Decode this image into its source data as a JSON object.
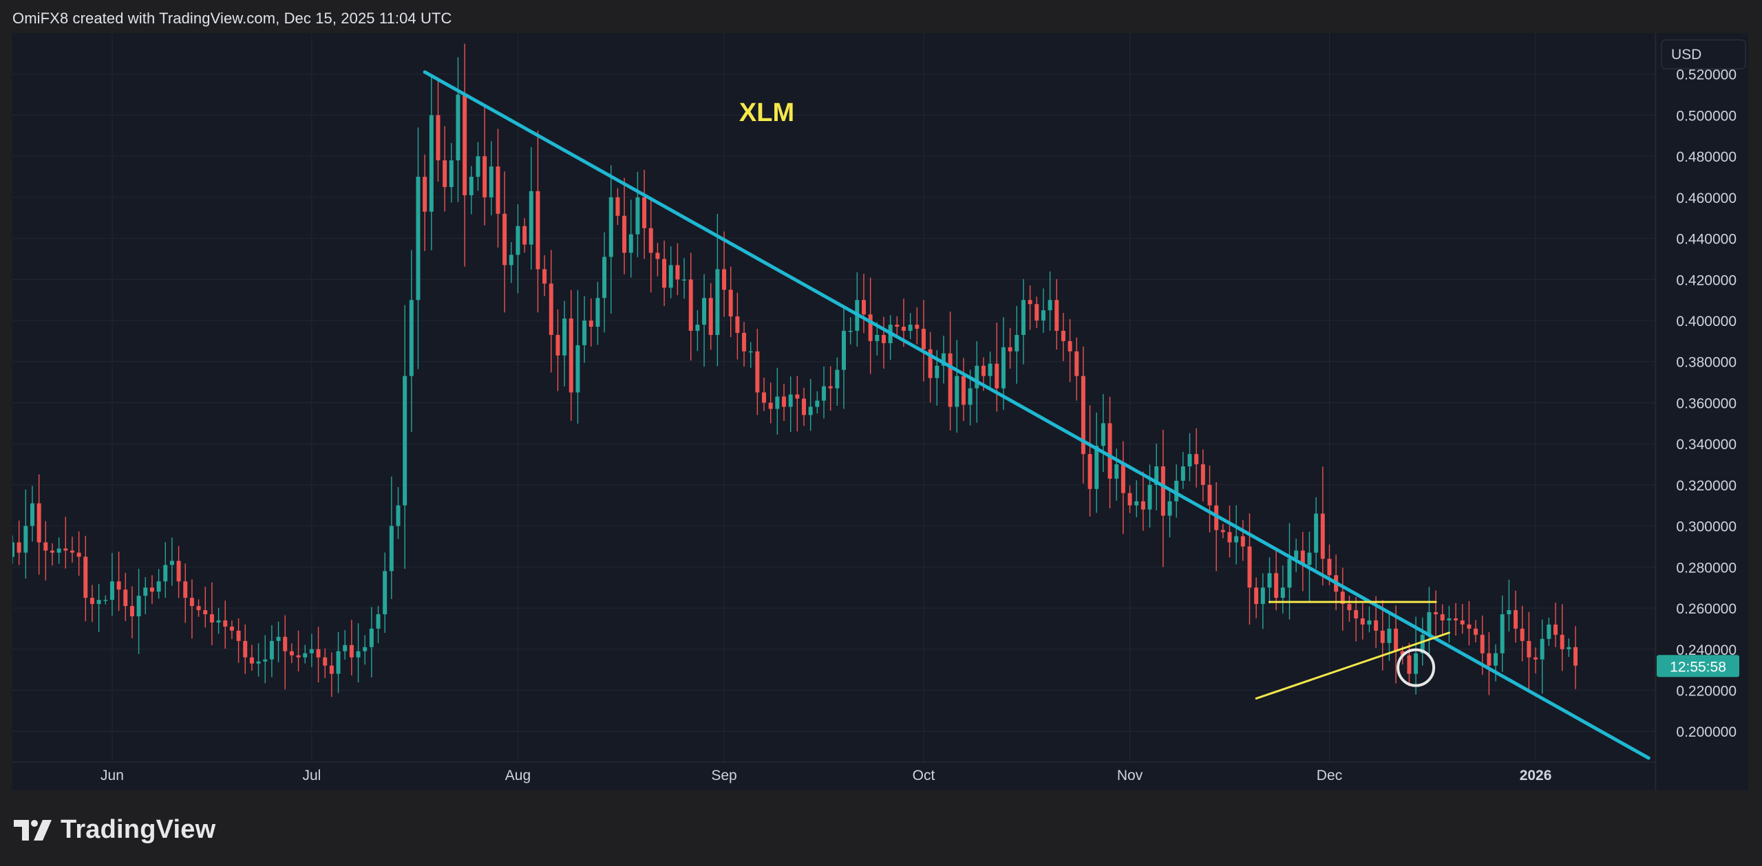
{
  "header": {
    "attribution": "OmiFX8 created with TradingView.com, Dec 15, 2025 11:04 UTC"
  },
  "footer": {
    "brand": "TradingView"
  },
  "colors": {
    "background": "#1f1f21",
    "plot_bg": "#161a25",
    "grid": "#232734",
    "bull": "#26a69a",
    "bear": "#ef5350",
    "trendline": "#1fb8d2",
    "yellow": "#f5e84a",
    "title": "#f5e84a",
    "text": "#d1d4dc"
  },
  "chart_data": {
    "type": "candlestick",
    "title": "XLM",
    "currency_label": "USD",
    "countdown": "12:55:58",
    "last_price": 0.2318,
    "ylim": [
      0.185,
      0.54
    ],
    "y_ticks": [
      0.2,
      0.22,
      0.24,
      0.26,
      0.28,
      0.3,
      0.32,
      0.34,
      0.36,
      0.38,
      0.4,
      0.42,
      0.44,
      0.46,
      0.48,
      0.5,
      0.52
    ],
    "y_tick_labels": [
      "0.200000",
      "0.220000",
      "0.240000",
      "0.260000",
      "0.280000",
      "0.300000",
      "0.320000",
      "0.340000",
      "0.360000",
      "0.380000",
      "0.400000",
      "0.420000",
      "0.440000",
      "0.460000",
      "0.480000",
      "0.500000",
      "0.520000"
    ],
    "x_range": [
      "2025-05-17",
      "2026-01-19"
    ],
    "x_ticks": [
      {
        "date": "2025-06-01",
        "label": "Jun",
        "bold": false
      },
      {
        "date": "2025-07-01",
        "label": "Jul",
        "bold": false
      },
      {
        "date": "2025-08-01",
        "label": "Aug",
        "bold": false
      },
      {
        "date": "2025-09-01",
        "label": "Sep",
        "bold": false
      },
      {
        "date": "2025-10-01",
        "label": "Oct",
        "bold": false
      },
      {
        "date": "2025-11-01",
        "label": "Nov",
        "bold": false
      },
      {
        "date": "2025-12-01",
        "label": "Dec",
        "bold": false
      },
      {
        "date": "2026-01-01",
        "label": "2026",
        "bold": true
      }
    ],
    "start_date": "2025-05-17",
    "closes": [
      0.292,
      0.287,
      0.3,
      0.311,
      0.292,
      0.288,
      0.287,
      0.289,
      0.288,
      0.287,
      0.285,
      0.265,
      0.262,
      0.264,
      0.264,
      0.273,
      0.269,
      0.261,
      0.256,
      0.266,
      0.27,
      0.268,
      0.273,
      0.281,
      0.283,
      0.273,
      0.265,
      0.261,
      0.259,
      0.257,
      0.253,
      0.254,
      0.251,
      0.249,
      0.244,
      0.236,
      0.233,
      0.234,
      0.235,
      0.244,
      0.246,
      0.239,
      0.237,
      0.236,
      0.238,
      0.24,
      0.236,
      0.232,
      0.228,
      0.239,
      0.242,
      0.236,
      0.239,
      0.241,
      0.25,
      0.257,
      0.278,
      0.3,
      0.31,
      0.373,
      0.41,
      0.47,
      0.453,
      0.5,
      0.478,
      0.465,
      0.478,
      0.51,
      0.461,
      0.47,
      0.48,
      0.46,
      0.475,
      0.452,
      0.427,
      0.432,
      0.446,
      0.437,
      0.463,
      0.425,
      0.418,
      0.393,
      0.383,
      0.401,
      0.365,
      0.388,
      0.4,
      0.397,
      0.411,
      0.431,
      0.46,
      0.451,
      0.433,
      0.442,
      0.46,
      0.445,
      0.433,
      0.43,
      0.416,
      0.427,
      0.42,
      0.42,
      0.395,
      0.398,
      0.411,
      0.393,
      0.425,
      0.415,
      0.402,
      0.394,
      0.385,
      0.385,
      0.365,
      0.36,
      0.357,
      0.363,
      0.358,
      0.364,
      0.362,
      0.354,
      0.358,
      0.361,
      0.368,
      0.367,
      0.376,
      0.395,
      0.395,
      0.41,
      0.403,
      0.39,
      0.393,
      0.389,
      0.398,
      0.397,
      0.395,
      0.398,
      0.396,
      0.386,
      0.372,
      0.378,
      0.384,
      0.358,
      0.373,
      0.359,
      0.367,
      0.378,
      0.373,
      0.379,
      0.367,
      0.387,
      0.385,
      0.393,
      0.41,
      0.408,
      0.4,
      0.405,
      0.41,
      0.395,
      0.39,
      0.385,
      0.373,
      0.335,
      0.318,
      0.339,
      0.35,
      0.323,
      0.33,
      0.316,
      0.31,
      0.312,
      0.308,
      0.32,
      0.329,
      0.305,
      0.312,
      0.322,
      0.329,
      0.335,
      0.33,
      0.32,
      0.31,
      0.298,
      0.297,
      0.292,
      0.295,
      0.29,
      0.27,
      0.262,
      0.27,
      0.277,
      0.265,
      0.27,
      0.284,
      0.288,
      0.281,
      0.287,
      0.306,
      0.284,
      0.276,
      0.268,
      0.262,
      0.259,
      0.255,
      0.252,
      0.254,
      0.249,
      0.243,
      0.25,
      0.239,
      0.237,
      0.228,
      0.238,
      0.247,
      0.258,
      0.257,
      0.254,
      0.255,
      0.254,
      0.252,
      0.25,
      0.247,
      0.238,
      0.232,
      0.238,
      0.257,
      0.259,
      0.25,
      0.244,
      0.236,
      0.235,
      0.245,
      0.252,
      0.247,
      0.24,
      0.241,
      0.232
    ],
    "trendlines": [
      {
        "name": "descending",
        "color": "trendline",
        "points": [
          [
            "2025-07-18",
            0.521
          ],
          [
            "2026-01-18",
            0.187
          ]
        ]
      },
      {
        "name": "resistance",
        "color": "yellow",
        "points": [
          [
            "2025-11-22",
            0.263
          ],
          [
            "2025-12-17",
            0.263
          ]
        ]
      },
      {
        "name": "support",
        "color": "yellow",
        "points": [
          [
            "2025-11-20",
            0.216
          ],
          [
            "2025-12-19",
            0.248
          ]
        ]
      }
    ],
    "highlight_circle": {
      "date": "2025-12-14",
      "price": 0.231
    },
    "grid": true
  }
}
